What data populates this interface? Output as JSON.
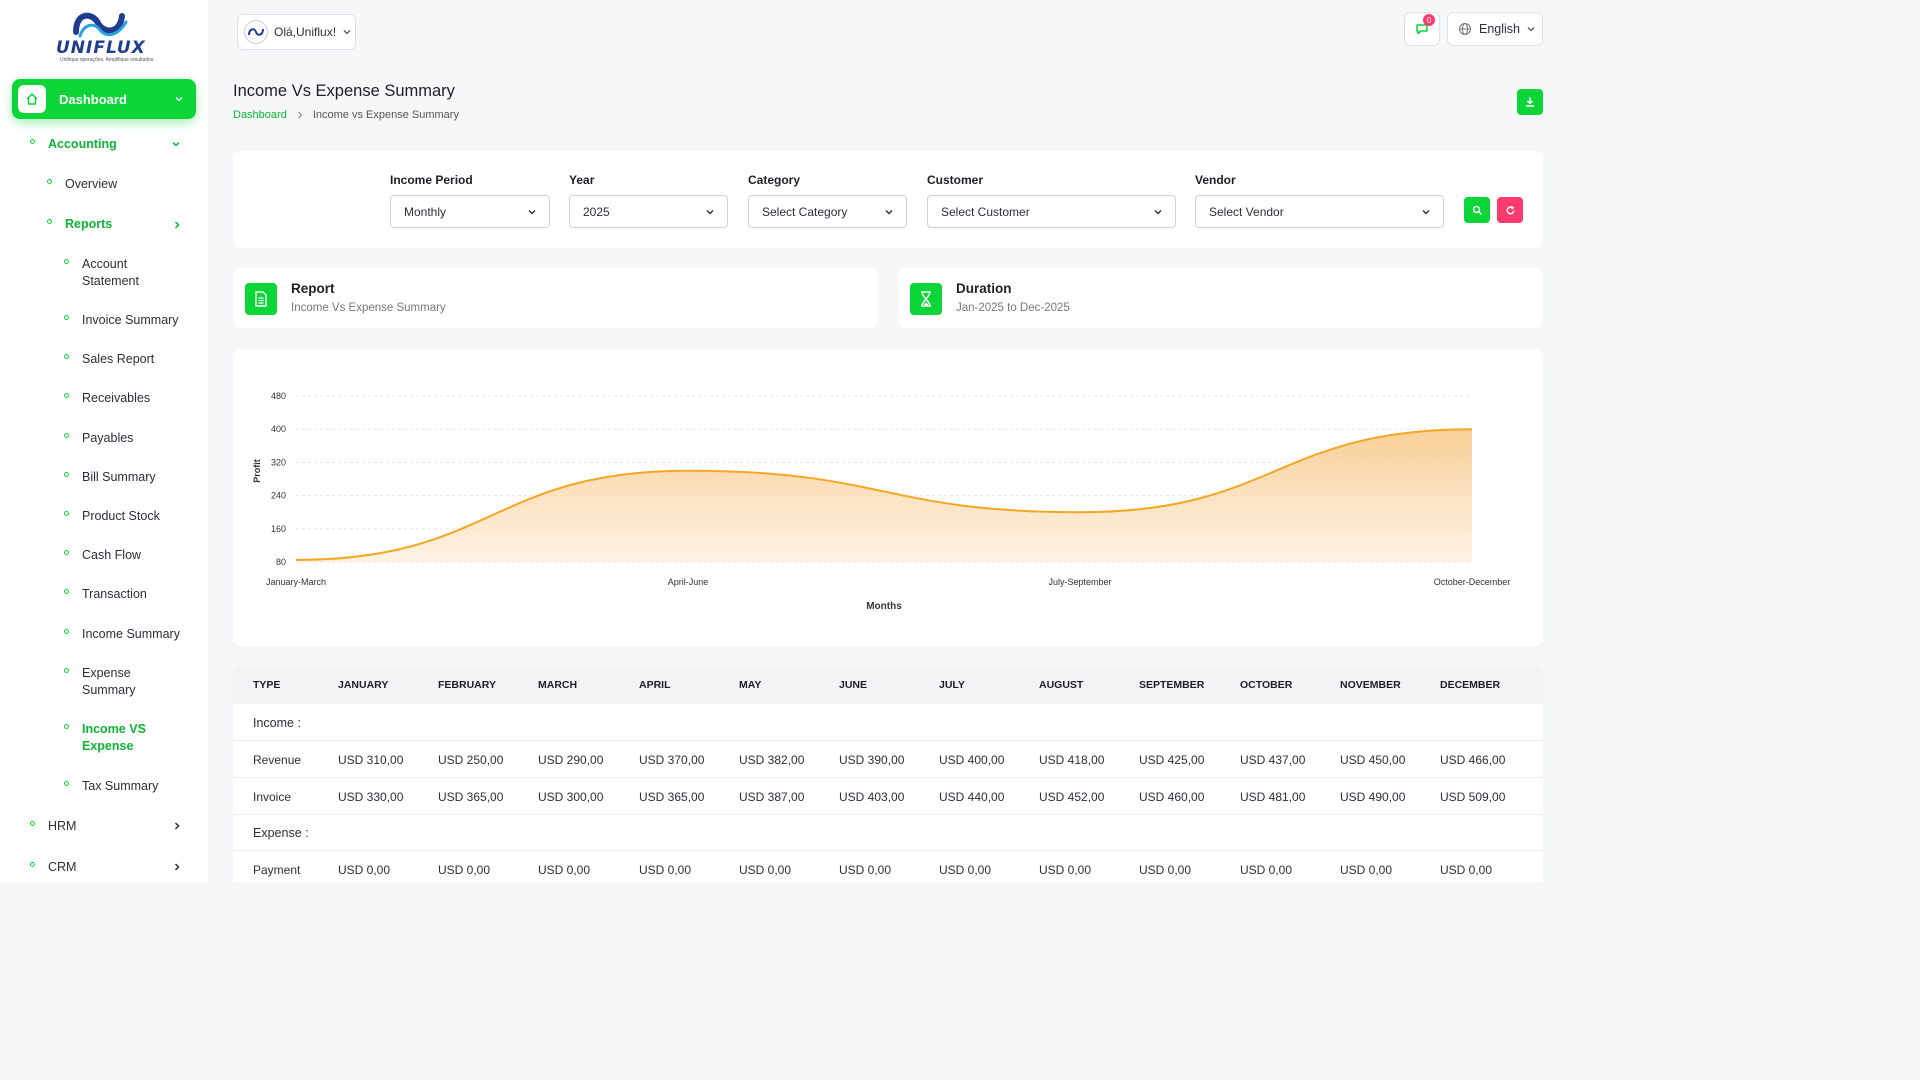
{
  "brand": {
    "name": "UNIFLUX",
    "tagline": "Unifique operações. Amplifique resultados"
  },
  "sidebar": {
    "dashboard": "Dashboard",
    "accounting": "Accounting",
    "overview": "Overview",
    "reports": "Reports",
    "report_items": [
      "Account Statement",
      "Invoice Summary",
      "Sales Report",
      "Receivables",
      "Payables",
      "Bill Summary",
      "Product Stock",
      "Cash Flow",
      "Transaction",
      "Income Summary",
      "Expense Summary",
      "Income VS Expense",
      "Tax Summary"
    ],
    "hrm": "HRM",
    "crm": "CRM"
  },
  "header": {
    "user_greeting": "Olá,Uniflux!",
    "notification_count": "0",
    "language": "English"
  },
  "page": {
    "title": "Income Vs Expense Summary",
    "breadcrumb": [
      "Dashboard",
      "Income vs Expense Summary"
    ]
  },
  "filters": {
    "income_period": {
      "label": "Income Period",
      "value": "Monthly"
    },
    "year": {
      "label": "Year",
      "value": "2025"
    },
    "category": {
      "label": "Category",
      "value": "Select Category"
    },
    "customer": {
      "label": "Customer",
      "value": "Select Customer"
    },
    "vendor": {
      "label": "Vendor",
      "value": "Select Vendor"
    }
  },
  "info": {
    "report": {
      "title": "Report",
      "value": "Income Vs Expense Summary"
    },
    "duration": {
      "title": "Duration",
      "value": "Jan-2025 to Dec-2025"
    }
  },
  "chart_data": {
    "type": "area",
    "categories": [
      "January-March",
      "April-June",
      "July-September",
      "October-December"
    ],
    "series": [
      {
        "values": [
          85,
          300,
          200,
          400
        ]
      }
    ],
    "xlabel": "Months",
    "ylabel": "Profit",
    "yticks": [
      80,
      160,
      240,
      320,
      400,
      480
    ],
    "ylim": [
      80,
      480
    ],
    "grid": true,
    "colors": {
      "line": "#f5a623",
      "fill": "#fbd9a6"
    }
  },
  "table": {
    "headers": [
      "TYPE",
      "JANUARY",
      "FEBRUARY",
      "MARCH",
      "APRIL",
      "MAY",
      "JUNE",
      "JULY",
      "AUGUST",
      "SEPTEMBER",
      "OCTOBER",
      "NOVEMBER",
      "DECEMBER"
    ],
    "income_label": "Income :",
    "expense_label": "Expense :",
    "rows": [
      {
        "type": "Revenue",
        "values": [
          "USD 310,00",
          "USD 250,00",
          "USD 290,00",
          "USD 370,00",
          "USD 382,00",
          "USD 390,00",
          "USD 400,00",
          "USD 418,00",
          "USD 425,00",
          "USD 437,00",
          "USD 450,00",
          "USD 466,00"
        ]
      },
      {
        "type": "Invoice",
        "values": [
          "USD 330,00",
          "USD 365,00",
          "USD 300,00",
          "USD 365,00",
          "USD 387,00",
          "USD 403,00",
          "USD 440,00",
          "USD 452,00",
          "USD 460,00",
          "USD 481,00",
          "USD 490,00",
          "USD 509,00"
        ]
      },
      {
        "type": "Payment",
        "values": [
          "USD 0,00",
          "USD 0,00",
          "USD 0,00",
          "USD 0,00",
          "USD 0,00",
          "USD 0,00",
          "USD 0,00",
          "USD 0,00",
          "USD 0,00",
          "USD 0,00",
          "USD 0,00",
          "USD 0,00"
        ]
      }
    ]
  },
  "colors": {
    "accent": "#0cd538",
    "danger": "#ff3a6e",
    "chart_line": "#f5a623"
  }
}
